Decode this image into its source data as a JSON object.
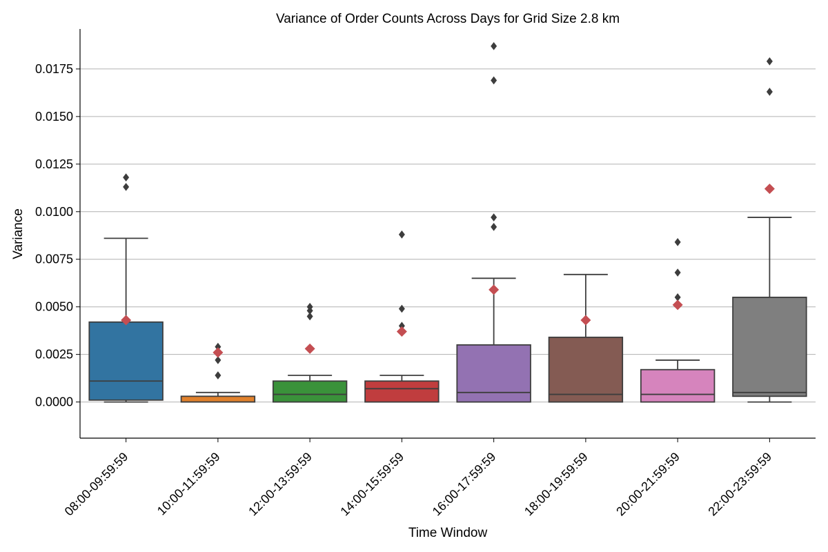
{
  "chart_data": {
    "type": "box",
    "title": "Variance of Order Counts Across Days for Grid Size 2.8 km",
    "xlabel": "Time Window",
    "ylabel": "Variance",
    "ylim": [
      -0.0019,
      0.0196
    ],
    "yticks": [
      "0.0000",
      "0.0025",
      "0.0050",
      "0.0075",
      "0.0100",
      "0.0125",
      "0.0150",
      "0.0175"
    ],
    "grid": "horizontal",
    "categories": [
      "08:00-09:59:59",
      "10:00-11:59:59",
      "12:00-13:59:59",
      "14:00-15:59:59",
      "16:00-17:59:59",
      "18:00-19:59:59",
      "20:00-21:59:59",
      "22:00-23:59:59"
    ],
    "boxes": [
      {
        "category": "08:00-09:59:59",
        "color": "#3274a1",
        "whisker_low": 0.0,
        "q1": 0.0001,
        "median": 0.0011,
        "q3": 0.0042,
        "whisker_high": 0.0086,
        "mean": 0.0043,
        "outliers": [
          0.0113,
          0.0118
        ]
      },
      {
        "category": "10:00-11:59:59",
        "color": "#e1812c",
        "whisker_low": 0.0,
        "q1": 0.0,
        "median": 0.0,
        "q3": 0.0003,
        "whisker_high": 0.0005,
        "mean": 0.0026,
        "outliers": [
          0.0014,
          0.0022,
          0.0029
        ]
      },
      {
        "category": "12:00-13:59:59",
        "color": "#3a923a",
        "whisker_low": 0.0,
        "q1": 0.0,
        "median": 0.0004,
        "q3": 0.0011,
        "whisker_high": 0.0014,
        "mean": 0.0028,
        "outliers": [
          0.0045,
          0.0048,
          0.005
        ]
      },
      {
        "category": "14:00-15:59:59",
        "color": "#c03d3e",
        "whisker_low": 0.0,
        "q1": 0.0,
        "median": 0.0007,
        "q3": 0.0011,
        "whisker_high": 0.0014,
        "mean": 0.0037,
        "outliers": [
          0.004,
          0.0049,
          0.0088
        ]
      },
      {
        "category": "16:00-17:59:59",
        "color": "#9372b2",
        "whisker_low": 0.0,
        "q1": 0.0,
        "median": 0.0005,
        "q3": 0.003,
        "whisker_high": 0.0065,
        "mean": 0.0059,
        "outliers": [
          0.0092,
          0.0097,
          0.0169,
          0.0187
        ]
      },
      {
        "category": "18:00-19:59:59",
        "color": "#845b53",
        "whisker_low": 0.0,
        "q1": 0.0,
        "median": 0.0004,
        "q3": 0.0034,
        "whisker_high": 0.0067,
        "mean": 0.0043,
        "outliers": []
      },
      {
        "category": "20:00-21:59:59",
        "color": "#d684bd",
        "whisker_low": 0.0,
        "q1": 0.0,
        "median": 0.0004,
        "q3": 0.0017,
        "whisker_high": 0.0022,
        "mean": 0.0051,
        "outliers": [
          0.0055,
          0.0068,
          0.0084
        ]
      },
      {
        "category": "22:00-23:59:59",
        "color": "#7f7f7f",
        "whisker_low": 0.0,
        "q1": 0.0003,
        "median": 0.0005,
        "q3": 0.0055,
        "whisker_high": 0.0097,
        "mean": 0.0112,
        "outliers": [
          0.0163,
          0.0179
        ]
      }
    ],
    "mean_marker_color": "#c44e52",
    "outlier_color": "#3d3d3d",
    "line_color": "#3d3d3d"
  }
}
